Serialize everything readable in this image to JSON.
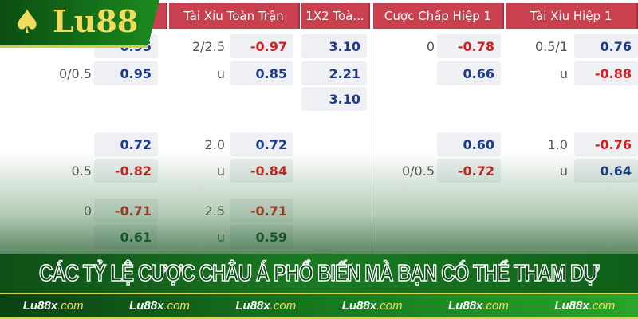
{
  "logo": {
    "text": "Lu88"
  },
  "headers": [
    "...",
    "Tài Xỉu Toàn Trận",
    "1X2 Toà...",
    "Cược Chấp Hiệp 1",
    "Tài Xỉu Hiệp 1"
  ],
  "rows": [
    {
      "c1_line": "",
      "c1": "0.95",
      "c2_line": "2/2.5",
      "c2": "-0.97",
      "x12": "3.10",
      "c3_line": "0",
      "c3": "-0.78",
      "c4_line": "0.5/1",
      "c4": "0.76"
    },
    {
      "c1_line": "0/0.5",
      "c1": "0.95",
      "c2_line": "u",
      "c2": "0.85",
      "x12": "2.21",
      "c3_line": "",
      "c3": "0.66",
      "c4_line": "u",
      "c4": "-0.88"
    },
    {
      "x12": "3.10"
    },
    {
      "c1_line": "",
      "c1": "0.72",
      "c2_line": "2.0",
      "c2": "0.72",
      "c3_line": "",
      "c3": "0.60",
      "c4_line": "1.0",
      "c4": "-0.76"
    },
    {
      "c1_line": "0.5",
      "c1": "-0.82",
      "c2_line": "u",
      "c2": "-0.84",
      "c3_line": "0/0.5",
      "c3": "-0.72",
      "c4_line": "u",
      "c4": "0.64"
    },
    {
      "c1_line": "0",
      "c1": "-0.71",
      "c2_line": "2.5",
      "c2": "-0.71"
    },
    {
      "c1_line": "",
      "c1": "0.61",
      "c2_line": "u",
      "c2": "0.59"
    }
  ],
  "banner": {
    "title": "CÁC TỶ LỆ CƯỢC CHÂU Á PHỔ BIẾN MÀ BẠN CÓ THỂ THAM DỰ"
  },
  "footer": {
    "brand": "Lu88x",
    "domain": ".com",
    "count": 6
  },
  "colors": {
    "header": "#c9414f",
    "positive": "#1e3a8a",
    "negative": "#d21f1f",
    "brand_green": "#17781f",
    "brand_gold": "#f2dc5d"
  }
}
